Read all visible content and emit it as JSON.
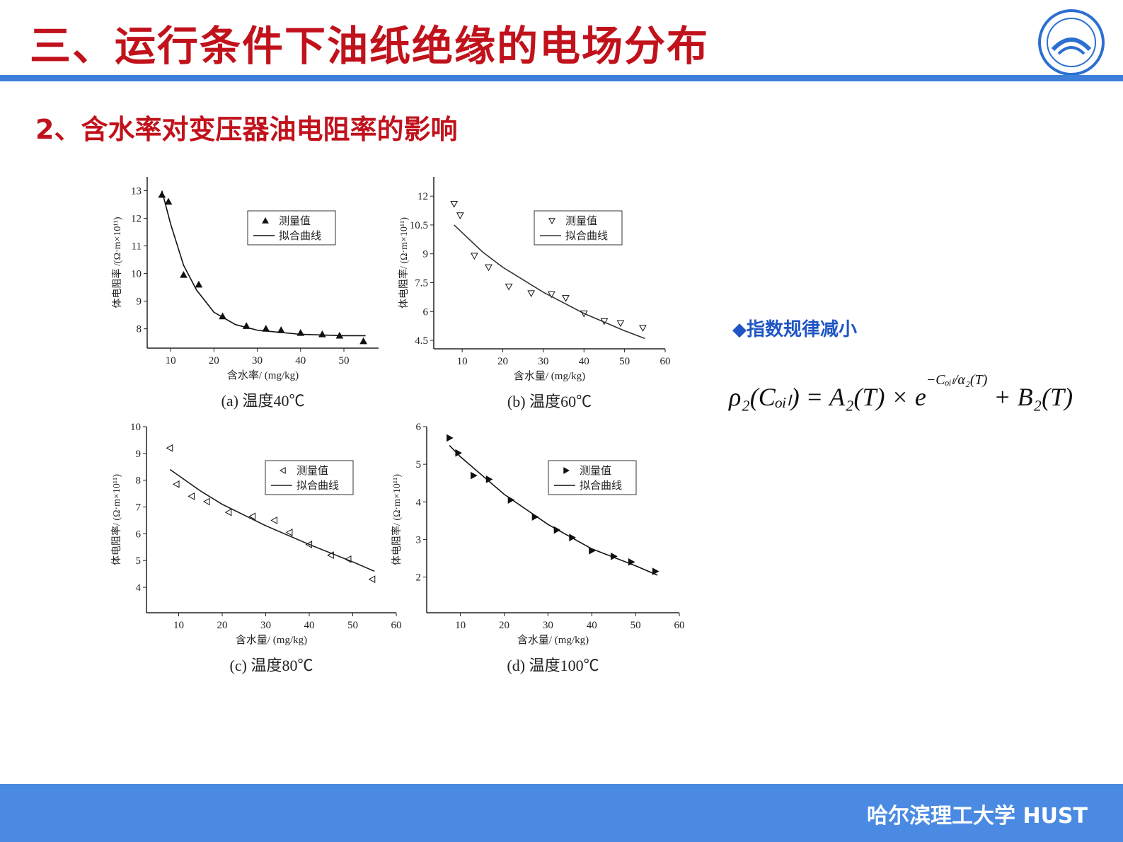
{
  "header": {
    "title": "三、运行条件下油纸绝缘的电场分布",
    "subtitle": "2、含水率对变压器油电阻率的影响"
  },
  "note": "◆指数规律减小",
  "formula": {
    "main": "ρ₂(Cₒᵢₗ) = A₂(T) × e",
    "exponent": "−Cₒᵢₗ/α₂(T)",
    "tail": "+ B₂(T)"
  },
  "footer": "哈尔滨理工大学  HUST",
  "chart_data": [
    {
      "type": "scatter",
      "caption": "(a)  温度40℃",
      "x_label": "含水率/ (mg/kg)",
      "y_label": "体电阻率 /(Ω·m×10¹¹)",
      "xlim": [
        4.6,
        58
      ],
      "xticks": [
        10,
        20,
        30,
        40,
        50
      ],
      "ylim": [
        7.3,
        13.5
      ],
      "yticks": [
        8,
        9,
        10,
        11,
        12,
        13
      ],
      "legend": "top-right",
      "series": [
        {
          "name": "测量值",
          "marker": "triangle-up",
          "filled": true,
          "color": "#111111",
          "x": [
            8,
            9.5,
            13,
            16.5,
            22,
            27.5,
            32,
            35.5,
            40,
            45,
            49,
            54.5
          ],
          "values": [
            12.85,
            12.6,
            9.95,
            9.6,
            8.45,
            8.1,
            8.0,
            7.95,
            7.85,
            7.8,
            7.75,
            7.55
          ]
        },
        {
          "name": "拟合曲线",
          "marker": "line",
          "color": "#111111",
          "x": [
            8,
            10,
            13,
            16,
            20,
            25,
            30,
            40,
            50,
            55
          ],
          "values": [
            13.0,
            11.8,
            10.3,
            9.4,
            8.6,
            8.15,
            7.95,
            7.8,
            7.75,
            7.75
          ]
        }
      ]
    },
    {
      "type": "scatter",
      "caption": "(b)  温度60℃",
      "x_label": "含水量/ (mg/kg)",
      "y_label": "体电阻率/ (Ω·m×10¹¹)",
      "xlim": [
        3,
        60
      ],
      "xticks": [
        10,
        20,
        30,
        40,
        50,
        60
      ],
      "ylim": [
        4.06,
        13
      ],
      "yticks": [
        4.5,
        6,
        7.5,
        9,
        10.5,
        12
      ],
      "legend": "top-right",
      "series": [
        {
          "name": "测量值",
          "marker": "triangle-down",
          "filled": false,
          "color": "#111111",
          "x": [
            8,
            9.5,
            13,
            16.5,
            21.5,
            27,
            32,
            35.5,
            40,
            45,
            49,
            54.5
          ],
          "values": [
            11.6,
            11.0,
            8.9,
            8.3,
            7.3,
            6.95,
            6.9,
            6.7,
            5.9,
            5.5,
            5.4,
            5.15
          ]
        },
        {
          "name": "拟合曲线",
          "marker": "line",
          "color": "#333333",
          "x": [
            8,
            15,
            20,
            30,
            40,
            50,
            55
          ],
          "values": [
            10.5,
            9.1,
            8.3,
            7.0,
            5.9,
            5.0,
            4.6
          ]
        }
      ]
    },
    {
      "type": "scatter",
      "caption": "(c)  温度80℃",
      "x_label": "含水量/ (mg/kg)",
      "y_label": "体电阻率/ (Ω·m×10¹¹)",
      "xlim": [
        2.6,
        60
      ],
      "xticks": [
        10,
        20,
        30,
        40,
        50,
        60
      ],
      "ylim": [
        3.05,
        10
      ],
      "yticks": [
        4,
        5,
        6,
        7,
        8,
        9,
        10
      ],
      "legend": "top-right",
      "series": [
        {
          "name": "测量值",
          "marker": "triangle-left",
          "filled": false,
          "color": "#111111",
          "x": [
            8,
            9.5,
            13,
            16.5,
            21.5,
            27,
            32,
            35.5,
            40,
            45,
            49,
            54.5
          ],
          "values": [
            9.2,
            7.85,
            7.4,
            7.2,
            6.8,
            6.65,
            6.5,
            6.05,
            5.6,
            5.2,
            5.05,
            4.3
          ]
        },
        {
          "name": "拟合曲线",
          "marker": "line",
          "color": "#222222",
          "x": [
            8,
            15,
            20,
            30,
            40,
            50,
            55
          ],
          "values": [
            8.4,
            7.6,
            7.1,
            6.3,
            5.6,
            4.95,
            4.6
          ]
        }
      ]
    },
    {
      "type": "scatter",
      "caption": "(d)  温度100℃",
      "x_label": "含水量/ (mg/kg)",
      "y_label": "体电阻率/ (Ω·m×10¹¹)",
      "xlim": [
        2.3,
        60
      ],
      "xticks": [
        10,
        20,
        30,
        40,
        50,
        60
      ],
      "ylim": [
        1.05,
        6
      ],
      "yticks": [
        2,
        3,
        4,
        5,
        6
      ],
      "legend": "top-right",
      "series": [
        {
          "name": "测量值",
          "marker": "triangle-right",
          "filled": true,
          "color": "#111111",
          "x": [
            7.5,
            9.5,
            13,
            16.5,
            21.5,
            27,
            32,
            35.5,
            40,
            45,
            49,
            54.5
          ],
          "values": [
            5.7,
            5.3,
            4.7,
            4.6,
            4.05,
            3.6,
            3.25,
            3.05,
            2.7,
            2.55,
            2.4,
            2.15
          ]
        },
        {
          "name": "拟合曲线",
          "marker": "line",
          "color": "#111111",
          "x": [
            7.5,
            10,
            15,
            20,
            30,
            40,
            50,
            55
          ],
          "values": [
            5.5,
            5.2,
            4.7,
            4.2,
            3.4,
            2.75,
            2.3,
            2.05
          ]
        }
      ]
    }
  ]
}
